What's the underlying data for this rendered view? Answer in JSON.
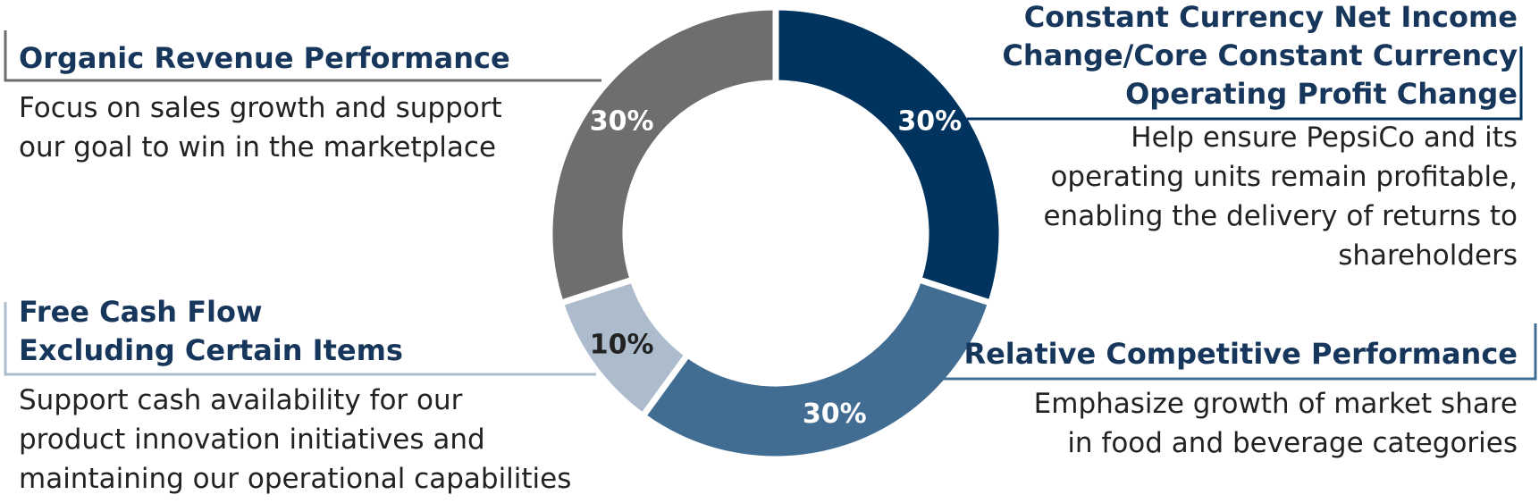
{
  "chart_data": {
    "type": "pie",
    "style": "donut",
    "slices": [
      {
        "label": "Constant Currency Net Income Change/Core Constant Currency Operating Profit Change",
        "value": 30,
        "display": "30%",
        "color": "#00345f",
        "text_color": "#ffffff"
      },
      {
        "label": "Relative Competitive Performance",
        "value": 30,
        "display": "30%",
        "color": "#426d93",
        "text_color": "#ffffff"
      },
      {
        "label": "Free Cash Flow Excluding Certain Items",
        "value": 10,
        "display": "10%",
        "color": "#adbccd",
        "text_color": "#222222"
      },
      {
        "label": "Organic Revenue Performance",
        "value": 30,
        "display": "30%",
        "color": "#6d6e70",
        "text_color": "#ffffff"
      }
    ]
  },
  "sections": {
    "organic": {
      "title": "Organic Revenue Performance",
      "desc": [
        "Focus on sales growth and support",
        "our goal to win in the marketplace"
      ]
    },
    "netincome": {
      "title": [
        "Constant Currency Net Income",
        "Change/Core Constant Currency",
        "Operating Profit Change"
      ],
      "desc": [
        "Help ensure PepsiCo and its",
        "operating units remain profitable,",
        "enabling the delivery of returns to",
        "shareholders"
      ]
    },
    "fcf": {
      "title": [
        "Free Cash Flow",
        "Excluding Certain Items"
      ],
      "desc": [
        "Support cash availability for our",
        "product innovation initiatives and",
        "maintaining our operational capabilities"
      ]
    },
    "rcp": {
      "title": "Relative Competitive Performance",
      "desc": [
        "Emphasize growth of market share",
        "in food and beverage categories"
      ]
    }
  },
  "colors": {
    "title": "#17365c",
    "rule_organic": "#6d6e70",
    "rule_netincome": "#00345f",
    "rule_fcf": "#adbccd",
    "rule_rcp": "#426d93"
  }
}
